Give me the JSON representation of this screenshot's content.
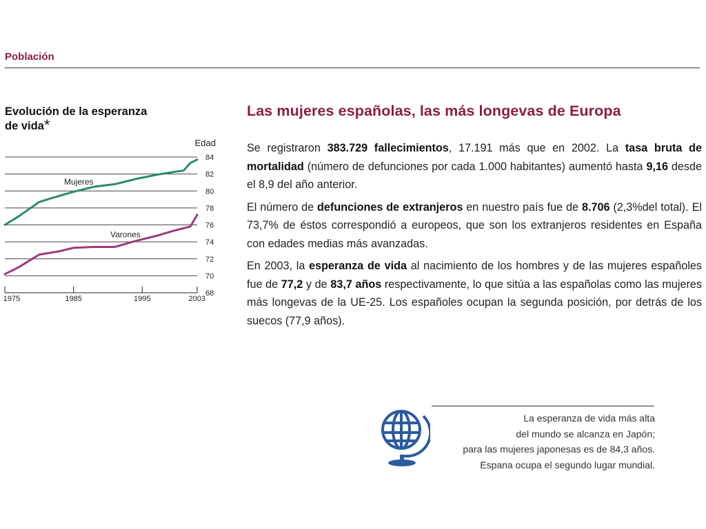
{
  "section": {
    "title": "Población"
  },
  "chart_title": {
    "line1": "Evolución de la esperanza",
    "line2": "de vida",
    "asterisk": "*"
  },
  "chart_data": {
    "type": "line",
    "ylabel": "Edad",
    "ylim": [
      68,
      84
    ],
    "yticks": [
      68,
      70,
      72,
      74,
      76,
      78,
      80,
      82,
      84
    ],
    "xlim": [
      1975,
      2003
    ],
    "xticks": [
      1975,
      1985,
      1995,
      2003
    ],
    "grid": true,
    "series": [
      {
        "name": "Mujeres",
        "color": "#2a8a6e",
        "x": [
          1975,
          1977,
          1980,
          1982,
          1985,
          1988,
          1991,
          1994,
          1997,
          2000,
          2001,
          2002,
          2003
        ],
        "values": [
          76.0,
          77.0,
          78.7,
          79.2,
          79.9,
          80.5,
          80.8,
          81.4,
          81.9,
          82.3,
          82.4,
          83.3,
          83.7
        ]
      },
      {
        "name": "Varones",
        "color": "#9b3a78",
        "x": [
          1975,
          1977,
          1980,
          1983,
          1985,
          1988,
          1991,
          1994,
          1997,
          2000,
          2001,
          2002,
          2003
        ],
        "values": [
          70.2,
          71.0,
          72.5,
          72.9,
          73.3,
          73.4,
          73.4,
          74.1,
          74.7,
          75.4,
          75.6,
          75.8,
          77.2
        ]
      }
    ]
  },
  "headline": "Las mujeres españolas, las más longevas de Europa",
  "paragraphs": [
    [
      {
        "t": "Se registraron "
      },
      {
        "t": "383.729 fallecimientos",
        "b": true
      },
      {
        "t": ", 17.191 más que en 2002. La "
      },
      {
        "t": "tasa bruta de mortalidad",
        "b": true
      },
      {
        "t": " (número de defunciones por cada 1.000 habitantes) aumentó hasta "
      },
      {
        "t": "9,16",
        "b": true
      },
      {
        "t": " desde el 8,9 del año anterior."
      }
    ],
    [
      {
        "t": "El número de "
      },
      {
        "t": "defunciones de extranjeros",
        "b": true
      },
      {
        "t": " en nuestro país fue de "
      },
      {
        "t": "8.706",
        "b": true
      },
      {
        "t": " (2,3%del total). El 73,7% de éstos correspondió a europeos, que son los extranjeros residentes en España con edades medias más avanzadas."
      }
    ],
    [
      {
        "t": "En 2003, la "
      },
      {
        "t": "esperanza de vida",
        "b": true
      },
      {
        "t": " al nacimiento de los hombres y de las mujeres españoles fue de "
      },
      {
        "t": "77,2",
        "b": true
      },
      {
        "t": " y de "
      },
      {
        "t": "83,7 años",
        "b": true
      },
      {
        "t": " respectivamente, lo que sitúa a las españolas como las mujeres más longevas de la UE-25. Los españoles ocupan la segunda posición, por detrás de los suecos (77,9 años)."
      }
    ]
  ],
  "note": {
    "icon": "globe-icon",
    "lines": [
      "La esperanza de vida más alta",
      "del mundo se alcanza en Japón;",
      "para las mujeres japonesas es de 84,3 años.",
      "Espana ocupa el segundo lugar mundial."
    ]
  },
  "colors": {
    "accent": "#8b1e3f",
    "women": "#2a8a6e",
    "men": "#9b3a78",
    "globe": "#2c5aa0"
  }
}
